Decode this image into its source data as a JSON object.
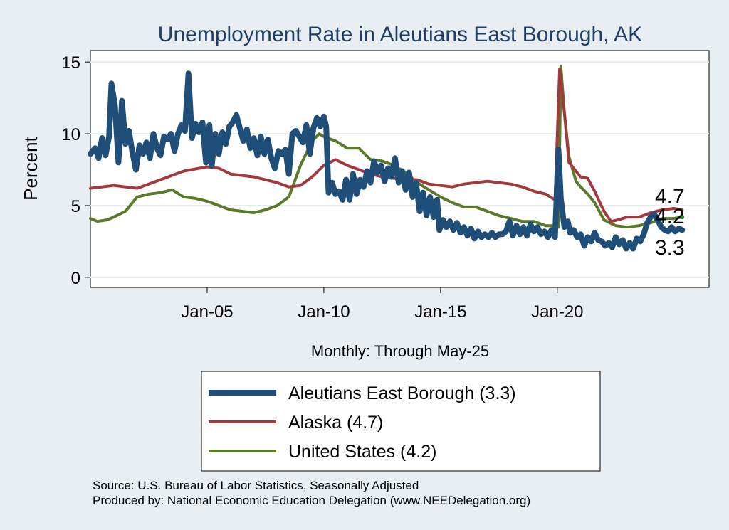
{
  "chart_data": {
    "type": "line",
    "title": "Unemployment Rate in Aleutians East Borough, AK",
    "ylabel": "Percent",
    "xlabel": "Monthly: Through May-25",
    "xlim": [
      2000.0,
      2026.5
    ],
    "ylim": [
      -0.7,
      15.8
    ],
    "yticks": [
      0,
      5,
      10,
      15
    ],
    "xticks": [
      {
        "label": "Jan-05",
        "value": 2005
      },
      {
        "label": "Jan-10",
        "value": 2010
      },
      {
        "label": "Jan-15",
        "value": 2015
      },
      {
        "label": "Jan-20",
        "value": 2020
      }
    ],
    "grid": true,
    "legend_placement": "bottom",
    "series": [
      {
        "name": "Aleutians East Borough  (3.3)",
        "legend_label": "Aleutians East Borough  (3.3)",
        "end_label": "3.3",
        "color": "#1f4e79",
        "width": 8,
        "points": [
          [
            2000.0,
            8.6
          ],
          [
            2000.2,
            9.0
          ],
          [
            2000.35,
            8.3
          ],
          [
            2000.5,
            9.7
          ],
          [
            2000.65,
            8.5
          ],
          [
            2000.8,
            9.8
          ],
          [
            2000.9,
            13.5
          ],
          [
            2001.05,
            12.0
          ],
          [
            2001.2,
            8.0
          ],
          [
            2001.35,
            12.3
          ],
          [
            2001.5,
            9.3
          ],
          [
            2001.65,
            10.2
          ],
          [
            2001.8,
            8.7
          ],
          [
            2001.95,
            7.5
          ],
          [
            2002.1,
            9.2
          ],
          [
            2002.25,
            8.6
          ],
          [
            2002.4,
            9.4
          ],
          [
            2002.55,
            8.3
          ],
          [
            2002.7,
            10.0
          ],
          [
            2002.85,
            9.0
          ],
          [
            2003.0,
            8.5
          ],
          [
            2003.15,
            9.8
          ],
          [
            2003.3,
            9.6
          ],
          [
            2003.45,
            10.0
          ],
          [
            2003.6,
            8.8
          ],
          [
            2003.75,
            10.0
          ],
          [
            2003.9,
            10.6
          ],
          [
            2004.05,
            10.2
          ],
          [
            2004.2,
            14.2
          ],
          [
            2004.35,
            9.7
          ],
          [
            2004.5,
            10.7
          ],
          [
            2004.65,
            10.1
          ],
          [
            2004.8,
            10.8
          ],
          [
            2004.95,
            8.0
          ],
          [
            2005.1,
            10.6
          ],
          [
            2005.2,
            7.8
          ],
          [
            2005.35,
            10.0
          ],
          [
            2005.5,
            8.6
          ],
          [
            2005.65,
            10.1
          ],
          [
            2005.8,
            9.3
          ],
          [
            2005.95,
            10.5
          ],
          [
            2006.1,
            10.8
          ],
          [
            2006.25,
            11.3
          ],
          [
            2006.4,
            10.4
          ],
          [
            2006.55,
            9.5
          ],
          [
            2006.7,
            10.3
          ],
          [
            2006.85,
            9.0
          ],
          [
            2007.0,
            9.7
          ],
          [
            2007.15,
            8.5
          ],
          [
            2007.3,
            9.8
          ],
          [
            2007.45,
            8.6
          ],
          [
            2007.6,
            9.6
          ],
          [
            2007.75,
            8.3
          ],
          [
            2007.9,
            7.6
          ],
          [
            2008.05,
            8.8
          ],
          [
            2008.2,
            8.6
          ],
          [
            2008.35,
            8.9
          ],
          [
            2008.5,
            7.2
          ],
          [
            2008.65,
            10.0
          ],
          [
            2008.8,
            10.2
          ],
          [
            2008.95,
            9.8
          ],
          [
            2009.1,
            9.4
          ],
          [
            2009.25,
            10.6
          ],
          [
            2009.4,
            8.6
          ],
          [
            2009.55,
            10.4
          ],
          [
            2009.7,
            11.1
          ],
          [
            2009.85,
            10.5
          ],
          [
            2010.0,
            11.2
          ],
          [
            2010.1,
            10.5
          ],
          [
            2010.2,
            5.9
          ],
          [
            2010.35,
            6.6
          ],
          [
            2010.5,
            5.8
          ],
          [
            2010.65,
            6.0
          ],
          [
            2010.8,
            5.4
          ],
          [
            2010.95,
            6.8
          ],
          [
            2011.1,
            5.4
          ],
          [
            2011.25,
            7.2
          ],
          [
            2011.4,
            5.8
          ],
          [
            2011.55,
            6.8
          ],
          [
            2011.7,
            6.3
          ],
          [
            2011.85,
            7.4
          ],
          [
            2012.0,
            6.6
          ],
          [
            2012.15,
            8.1
          ],
          [
            2012.3,
            7.3
          ],
          [
            2012.45,
            7.8
          ],
          [
            2012.6,
            6.7
          ],
          [
            2012.75,
            7.6
          ],
          [
            2012.9,
            7.0
          ],
          [
            2013.05,
            8.3
          ],
          [
            2013.2,
            6.6
          ],
          [
            2013.35,
            7.4
          ],
          [
            2013.5,
            6.1
          ],
          [
            2013.65,
            7.3
          ],
          [
            2013.8,
            5.6
          ],
          [
            2013.95,
            6.6
          ],
          [
            2014.1,
            4.6
          ],
          [
            2014.25,
            5.9
          ],
          [
            2014.4,
            4.3
          ],
          [
            2014.55,
            5.6
          ],
          [
            2014.7,
            4.2
          ],
          [
            2014.85,
            5.4
          ],
          [
            2014.95,
            3.3
          ],
          [
            2015.1,
            4.0
          ],
          [
            2015.25,
            3.5
          ],
          [
            2015.4,
            3.9
          ],
          [
            2015.55,
            3.3
          ],
          [
            2015.7,
            3.8
          ],
          [
            2015.85,
            3.1
          ],
          [
            2016.0,
            3.5
          ],
          [
            2016.15,
            2.9
          ],
          [
            2016.3,
            3.4
          ],
          [
            2016.45,
            2.7
          ],
          [
            2016.6,
            3.2
          ],
          [
            2016.75,
            2.8
          ],
          [
            2016.9,
            3.0
          ],
          [
            2017.05,
            2.8
          ],
          [
            2017.2,
            3.1
          ],
          [
            2017.35,
            2.8
          ],
          [
            2017.5,
            3.0
          ],
          [
            2017.65,
            3.0
          ],
          [
            2017.8,
            3.2
          ],
          [
            2017.95,
            3.9
          ],
          [
            2018.1,
            2.9
          ],
          [
            2018.25,
            3.6
          ],
          [
            2018.4,
            3.0
          ],
          [
            2018.55,
            3.5
          ],
          [
            2018.7,
            2.9
          ],
          [
            2018.85,
            3.7
          ],
          [
            2019.0,
            3.2
          ],
          [
            2019.15,
            3.5
          ],
          [
            2019.3,
            3.0
          ],
          [
            2019.45,
            3.2
          ],
          [
            2019.6,
            2.8
          ],
          [
            2019.75,
            3.3
          ],
          [
            2019.9,
            2.8
          ],
          [
            2020.05,
            8.9
          ],
          [
            2020.15,
            5.5
          ],
          [
            2020.3,
            3.5
          ],
          [
            2020.45,
            3.9
          ],
          [
            2020.55,
            3.1
          ],
          [
            2020.7,
            3.3
          ],
          [
            2020.85,
            2.8
          ],
          [
            2021.0,
            3.0
          ],
          [
            2021.15,
            2.2
          ],
          [
            2021.3,
            2.8
          ],
          [
            2021.45,
            2.5
          ],
          [
            2021.6,
            3.1
          ],
          [
            2021.75,
            2.6
          ],
          [
            2021.9,
            2.5
          ],
          [
            2022.05,
            2.2
          ],
          [
            2022.2,
            2.4
          ],
          [
            2022.35,
            2.1
          ],
          [
            2022.5,
            2.8
          ],
          [
            2022.65,
            2.3
          ],
          [
            2022.8,
            2.6
          ],
          [
            2022.95,
            2.0
          ],
          [
            2023.1,
            2.4
          ],
          [
            2023.25,
            2.0
          ],
          [
            2023.4,
            2.7
          ],
          [
            2023.55,
            2.5
          ],
          [
            2023.7,
            3.0
          ],
          [
            2023.85,
            3.8
          ],
          [
            2024.0,
            4.2
          ],
          [
            2024.15,
            4.4
          ],
          [
            2024.3,
            4.0
          ],
          [
            2024.45,
            3.5
          ],
          [
            2024.6,
            3.3
          ],
          [
            2024.75,
            3.2
          ],
          [
            2024.9,
            3.5
          ],
          [
            2025.05,
            3.2
          ],
          [
            2025.2,
            3.4
          ],
          [
            2025.35,
            3.3
          ]
        ]
      },
      {
        "name": "Alaska (4.7)",
        "legend_label": "Alaska (4.7)",
        "end_label": "4.7",
        "color": "#a23a3d",
        "width": 4,
        "points": [
          [
            2000.0,
            6.2
          ],
          [
            2001.0,
            6.4
          ],
          [
            2002.0,
            6.2
          ],
          [
            2003.0,
            6.8
          ],
          [
            2004.0,
            7.4
          ],
          [
            2005.0,
            7.7
          ],
          [
            2005.5,
            7.6
          ],
          [
            2006.0,
            7.2
          ],
          [
            2007.0,
            7.0
          ],
          [
            2008.0,
            6.6
          ],
          [
            2008.5,
            6.3
          ],
          [
            2009.0,
            6.4
          ],
          [
            2009.5,
            7.0
          ],
          [
            2010.0,
            7.8
          ],
          [
            2010.5,
            8.2
          ],
          [
            2011.0,
            7.8
          ],
          [
            2011.5,
            7.5
          ],
          [
            2012.0,
            7.2
          ],
          [
            2012.5,
            7.0
          ],
          [
            2013.0,
            6.9
          ],
          [
            2013.5,
            6.8
          ],
          [
            2014.0,
            6.8
          ],
          [
            2014.5,
            6.5
          ],
          [
            2015.0,
            6.4
          ],
          [
            2015.5,
            6.3
          ],
          [
            2016.0,
            6.5
          ],
          [
            2016.5,
            6.6
          ],
          [
            2017.0,
            6.7
          ],
          [
            2017.5,
            6.6
          ],
          [
            2018.0,
            6.5
          ],
          [
            2018.5,
            6.3
          ],
          [
            2019.0,
            6.0
          ],
          [
            2019.5,
            5.8
          ],
          [
            2019.9,
            5.4
          ],
          [
            2020.1,
            14.5
          ],
          [
            2020.3,
            11.5
          ],
          [
            2020.5,
            8.0
          ],
          [
            2021.0,
            7.0
          ],
          [
            2021.3,
            6.9
          ],
          [
            2021.6,
            6.0
          ],
          [
            2022.0,
            4.6
          ],
          [
            2022.3,
            3.9
          ],
          [
            2022.6,
            4.0
          ],
          [
            2023.0,
            4.2
          ],
          [
            2023.5,
            4.2
          ],
          [
            2024.0,
            4.5
          ],
          [
            2024.5,
            4.7
          ],
          [
            2025.0,
            4.8
          ],
          [
            2025.35,
            4.7
          ]
        ]
      },
      {
        "name": "United States (4.2)",
        "legend_label": "United States (4.2)",
        "end_label": "4.2",
        "color": "#5a7a2a",
        "width": 4,
        "points": [
          [
            2000.0,
            4.1
          ],
          [
            2000.3,
            3.9
          ],
          [
            2000.7,
            4.0
          ],
          [
            2001.0,
            4.2
          ],
          [
            2001.5,
            4.6
          ],
          [
            2002.0,
            5.6
          ],
          [
            2002.5,
            5.8
          ],
          [
            2003.0,
            5.9
          ],
          [
            2003.5,
            6.1
          ],
          [
            2004.0,
            5.6
          ],
          [
            2004.5,
            5.5
          ],
          [
            2005.0,
            5.3
          ],
          [
            2005.5,
            5.0
          ],
          [
            2006.0,
            4.7
          ],
          [
            2006.5,
            4.6
          ],
          [
            2007.0,
            4.5
          ],
          [
            2007.5,
            4.7
          ],
          [
            2008.0,
            5.0
          ],
          [
            2008.5,
            5.6
          ],
          [
            2009.0,
            7.8
          ],
          [
            2009.5,
            9.5
          ],
          [
            2009.8,
            10.0
          ],
          [
            2010.0,
            9.8
          ],
          [
            2010.5,
            9.5
          ],
          [
            2011.0,
            9.0
          ],
          [
            2011.5,
            9.0
          ],
          [
            2012.0,
            8.2
          ],
          [
            2012.5,
            8.1
          ],
          [
            2013.0,
            7.8
          ],
          [
            2013.5,
            7.3
          ],
          [
            2014.0,
            6.6
          ],
          [
            2014.5,
            6.1
          ],
          [
            2015.0,
            5.6
          ],
          [
            2015.5,
            5.2
          ],
          [
            2016.0,
            4.9
          ],
          [
            2016.5,
            4.9
          ],
          [
            2017.0,
            4.6
          ],
          [
            2017.5,
            4.3
          ],
          [
            2018.0,
            4.1
          ],
          [
            2018.5,
            3.9
          ],
          [
            2019.0,
            3.9
          ],
          [
            2019.5,
            3.6
          ],
          [
            2019.9,
            3.6
          ],
          [
            2020.05,
            3.5
          ],
          [
            2020.15,
            14.7
          ],
          [
            2020.3,
            11.5
          ],
          [
            2020.5,
            8.4
          ],
          [
            2020.8,
            6.7
          ],
          [
            2021.0,
            6.3
          ],
          [
            2021.3,
            5.8
          ],
          [
            2021.6,
            5.2
          ],
          [
            2022.0,
            4.0
          ],
          [
            2022.5,
            3.6
          ],
          [
            2023.0,
            3.5
          ],
          [
            2023.5,
            3.6
          ],
          [
            2024.0,
            3.8
          ],
          [
            2024.5,
            4.1
          ],
          [
            2025.0,
            4.1
          ],
          [
            2025.35,
            4.2
          ]
        ]
      }
    ]
  },
  "notes": {
    "source": "Source: U.S. Bureau of Labor Statistics, Seasonally Adjusted",
    "produced": "Produced by: National Economic Education Delegation (www.NEEDelegation.org)"
  }
}
